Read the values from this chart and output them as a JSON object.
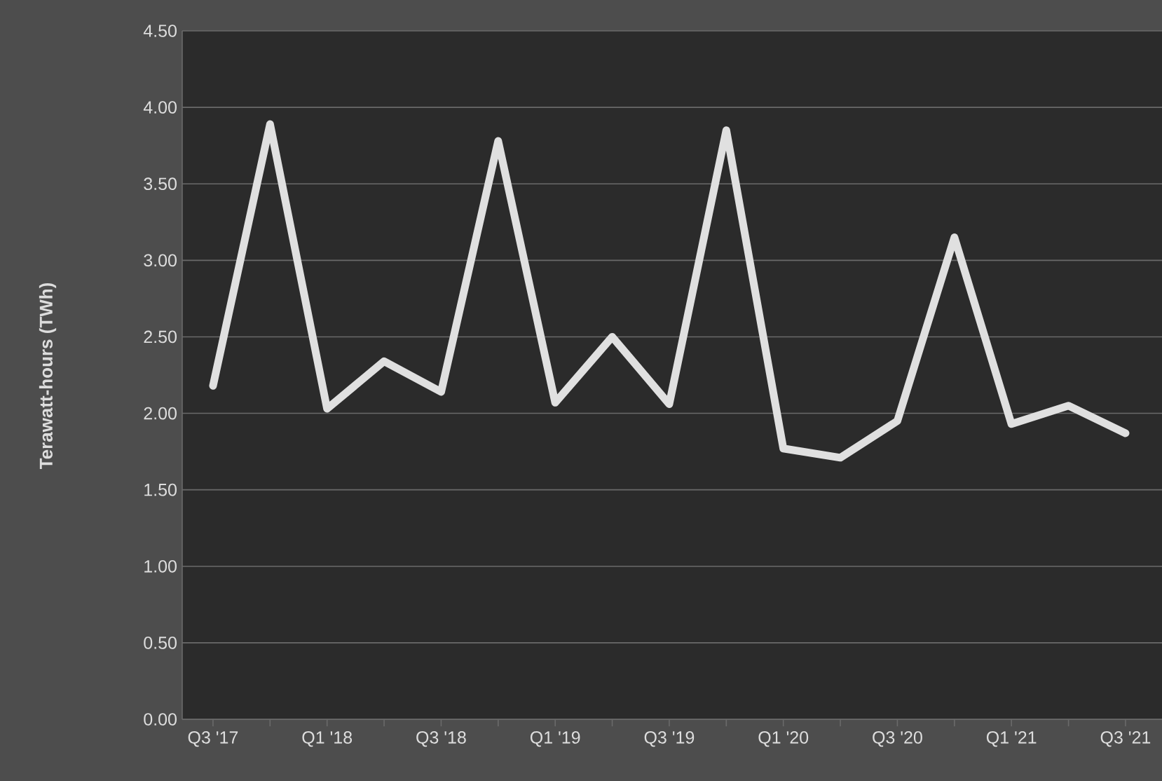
{
  "chart_data": {
    "type": "line",
    "ylabel": "Terawatt-hours (TWh)",
    "categories": [
      "Q3 '17",
      null,
      "Q1 '18",
      null,
      "Q3 '18",
      null,
      "Q1 '19",
      null,
      "Q3 '19",
      null,
      "Q1 '20",
      null,
      "Q3 '20",
      null,
      "Q1 '21",
      null,
      "Q3 '21"
    ],
    "series": [
      {
        "color": "#e0e0e0",
        "values": [
          2.18,
          3.89,
          2.03,
          2.34,
          2.14,
          3.78,
          2.07,
          2.5,
          2.06,
          3.85,
          1.77,
          1.71,
          1.95,
          3.15,
          1.93,
          2.05,
          1.87
        ]
      }
    ],
    "ylim": [
      0,
      4.5
    ],
    "yticks": [
      {
        "value": 0,
        "label": "0.00"
      },
      {
        "value": 0.5,
        "label": "0.50"
      },
      {
        "value": 1,
        "label": "1.00"
      },
      {
        "value": 1.5,
        "label": "1.50"
      },
      {
        "value": 2,
        "label": "2.00"
      },
      {
        "value": 2.5,
        "label": "2.50"
      },
      {
        "value": 3,
        "label": "3.00"
      },
      {
        "value": 3.5,
        "label": "3.50"
      },
      {
        "value": 4,
        "label": "4.00"
      },
      {
        "value": 4.5,
        "label": "4.50"
      }
    ],
    "grid": "y",
    "marker": "none",
    "line_style": "solid"
  }
}
